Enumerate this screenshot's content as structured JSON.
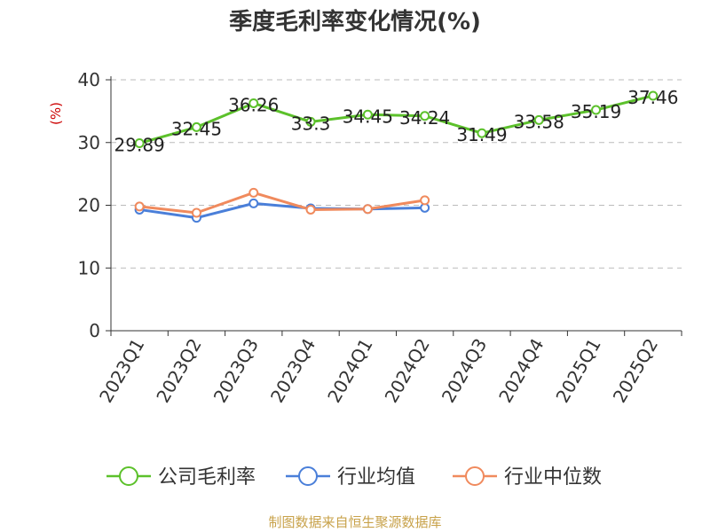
{
  "title": "季度毛利率变化情况(%)",
  "source": "制图数据来自恒生聚源数据库",
  "chart_data": {
    "type": "line",
    "title": "季度毛利率变化情况(%)",
    "ylabel": "(%)",
    "xlabel": "",
    "ylim": [
      0,
      40
    ],
    "yticks": [
      0,
      10,
      20,
      30,
      40
    ],
    "grid": true,
    "legend_position": "bottom",
    "categories": [
      "2023Q1",
      "2023Q2",
      "2023Q3",
      "2023Q4",
      "2024Q1",
      "2024Q2",
      "2024Q3",
      "2024Q4",
      "2025Q1",
      "2025Q2"
    ],
    "series": [
      {
        "name": "公司毛利率",
        "color": "#5cc12b",
        "values": [
          29.89,
          32.45,
          36.26,
          33.3,
          34.45,
          34.24,
          31.49,
          33.58,
          35.19,
          37.46
        ],
        "labels": [
          "29.89",
          "32.45",
          "36.26",
          "33.3",
          "34.45",
          "34.24",
          "31.49",
          "33.58",
          "35.19",
          "37.46"
        ]
      },
      {
        "name": "行业均值",
        "color": "#4a7fd9",
        "values": [
          19.3,
          18.0,
          20.3,
          19.5,
          19.4,
          19.6,
          null,
          null,
          null,
          null
        ]
      },
      {
        "name": "行业中位数",
        "color": "#f08a5d",
        "values": [
          19.8,
          18.8,
          22.0,
          19.3,
          19.4,
          20.8,
          null,
          null,
          null,
          null
        ]
      }
    ]
  }
}
